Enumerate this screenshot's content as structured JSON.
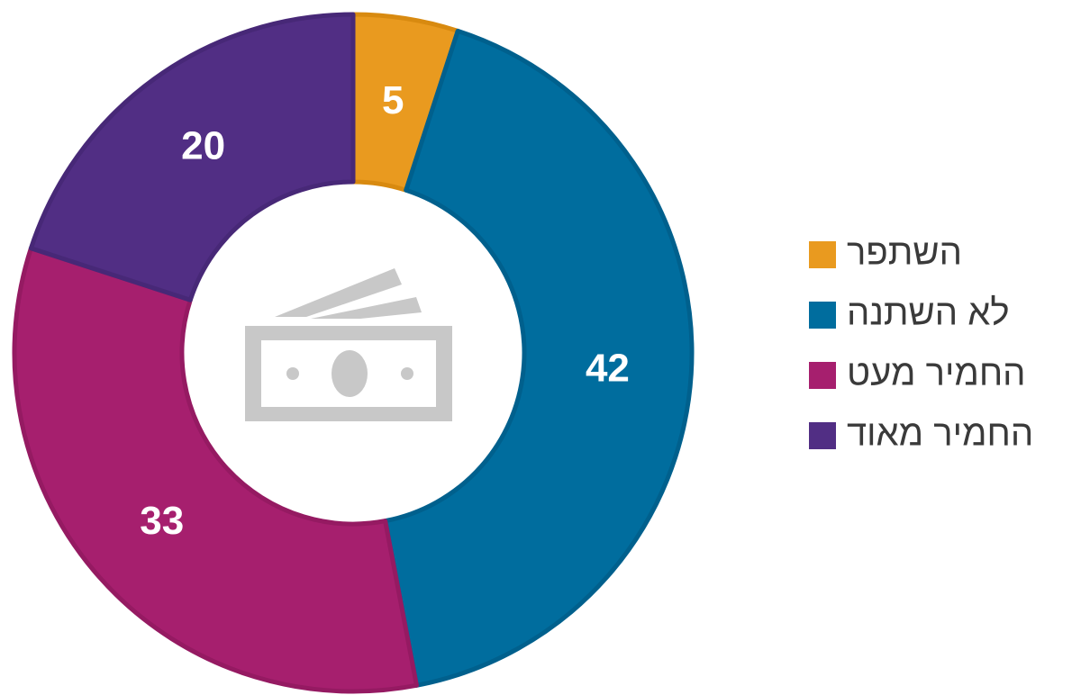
{
  "chart_data": {
    "type": "pie",
    "donut": true,
    "categories": [
      "השתפר",
      "לא השתנה",
      "החמיר מעט",
      "החמיר מאוד"
    ],
    "values": [
      5,
      42,
      33,
      20
    ],
    "colors": [
      "#e99a1f",
      "#006d9e",
      "#a61f6e",
      "#512e84"
    ],
    "edge_colors": [
      "#d88a10",
      "#00608d",
      "#951a62",
      "#472877"
    ],
    "legend": "right"
  }
}
